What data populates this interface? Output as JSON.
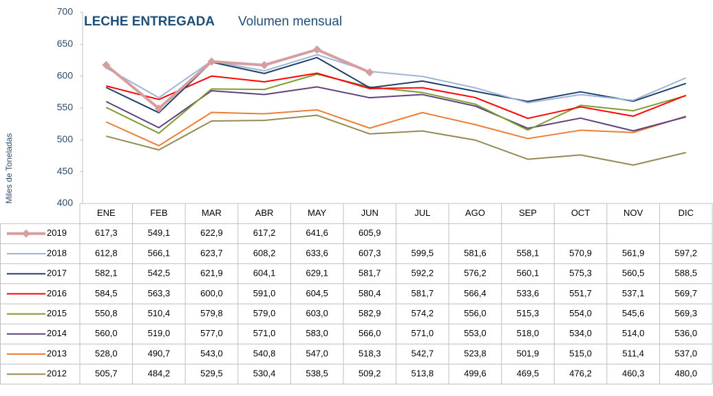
{
  "chart_data": {
    "type": "line",
    "title": "LECHE ENTREGADA",
    "subtitle": "Volumen mensual",
    "y_label": "Miles de Toneladas",
    "categories": [
      "ENE",
      "FEB",
      "MAR",
      "ABR",
      "MAY",
      "JUN",
      "JUL",
      "AGO",
      "SEP",
      "OCT",
      "NOV",
      "DIC"
    ],
    "ylim": [
      400,
      700
    ],
    "yticks": [
      400,
      450,
      500,
      550,
      600,
      650,
      700
    ],
    "grid": false,
    "data_table": true,
    "series": [
      {
        "name": "2019",
        "color": "#d69e9f",
        "marker": "diamond",
        "width": 4,
        "values": [
          617.3,
          549.1,
          622.9,
          617.2,
          641.6,
          605.9,
          null,
          null,
          null,
          null,
          null,
          null
        ],
        "value_labels": [
          "617,3",
          "549,1",
          "622,9",
          "617,2",
          "641,6",
          "605,9",
          null,
          null,
          null,
          null,
          null,
          null
        ]
      },
      {
        "name": "2018",
        "color": "#9db5d5",
        "values": [
          612.8,
          566.1,
          623.7,
          608.2,
          633.6,
          607.3,
          599.5,
          581.6,
          558.1,
          570.9,
          561.9,
          597.2
        ],
        "value_labels": [
          "612,8",
          "566,1",
          "623,7",
          "608,2",
          "633,6",
          "607,3",
          "599,5",
          "581,6",
          "558,1",
          "570,9",
          "561,9",
          "597,2"
        ]
      },
      {
        "name": "2017",
        "color": "#1f3f6a",
        "values": [
          582.1,
          542.5,
          621.9,
          604.1,
          629.1,
          581.7,
          592.2,
          576.2,
          560.1,
          575.3,
          560.5,
          588.5
        ],
        "value_labels": [
          "582,1",
          "542,5",
          "621,9",
          "604,1",
          "629,1",
          "581,7",
          "592,2",
          "576,2",
          "560,1",
          "575,3",
          "560,5",
          "588,5"
        ]
      },
      {
        "name": "2016",
        "color": "#ff0000",
        "values": [
          584.5,
          563.3,
          600.0,
          591.0,
          604.5,
          580.4,
          581.7,
          566.4,
          533.6,
          551.7,
          537.1,
          569.7
        ],
        "value_labels": [
          "584,5",
          "563,3",
          "600,0",
          "591,0",
          "604,5",
          "580,4",
          "581,7",
          "566,4",
          "533,6",
          "551,7",
          "537,1",
          "569,7"
        ]
      },
      {
        "name": "2015",
        "color": "#7f9b30",
        "values": [
          550.8,
          510.4,
          579.8,
          579.0,
          603.0,
          582.9,
          574.2,
          556.0,
          515.3,
          554.0,
          545.6,
          569.3
        ],
        "value_labels": [
          "550,8",
          "510,4",
          "579,8",
          "579,0",
          "603,0",
          "582,9",
          "574,2",
          "556,0",
          "515,3",
          "554,0",
          "545,6",
          "569,3"
        ]
      },
      {
        "name": "2014",
        "color": "#5f3f7c",
        "values": [
          560.0,
          519.0,
          577.0,
          571.0,
          583.0,
          566.0,
          571.0,
          553.0,
          518.0,
          534.0,
          514.0,
          536.0
        ],
        "value_labels": [
          "560,0",
          "519,0",
          "577,0",
          "571,0",
          "583,0",
          "566,0",
          "571,0",
          "553,0",
          "518,0",
          "534,0",
          "514,0",
          "536,0"
        ]
      },
      {
        "name": "2013",
        "color": "#ed7d31",
        "values": [
          528.0,
          490.7,
          543.0,
          540.8,
          547.0,
          518.3,
          542.7,
          523.8,
          501.9,
          515.0,
          511.4,
          537.0
        ],
        "value_labels": [
          "528,0",
          "490,7",
          "543,0",
          "540,8",
          "547,0",
          "518,3",
          "542,7",
          "523,8",
          "501,9",
          "515,0",
          "511,4",
          "537,0"
        ]
      },
      {
        "name": "2012",
        "color": "#948a54",
        "values": [
          505.7,
          484.2,
          529.5,
          530.4,
          538.5,
          509.2,
          513.8,
          499.6,
          469.5,
          476.2,
          460.3,
          480.0
        ],
        "value_labels": [
          "505,7",
          "484,2",
          "529,5",
          "530,4",
          "538,5",
          "509,2",
          "513,8",
          "499,6",
          "469,5",
          "476,2",
          "460,3",
          "480,0"
        ]
      }
    ]
  }
}
